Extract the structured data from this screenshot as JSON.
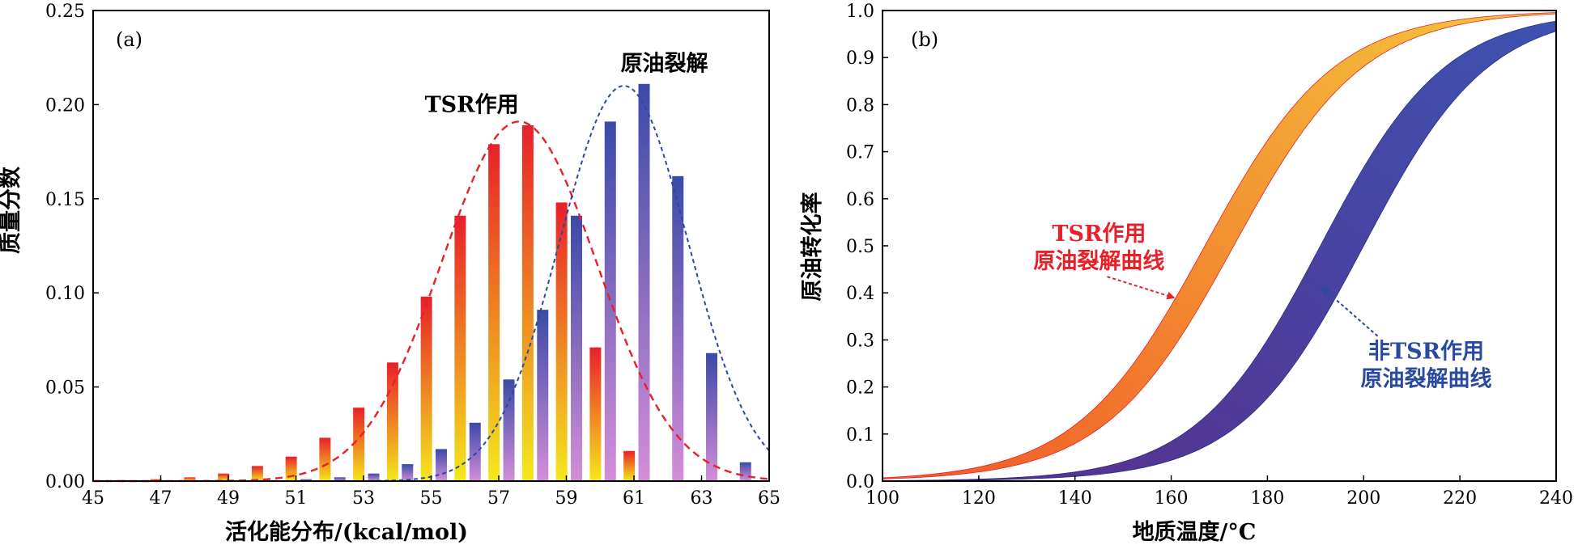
{
  "chart_data": [
    {
      "panel_label": "(a)",
      "type": "bar",
      "xlabel": "活化能分布/(kcal/mol)",
      "ylabel": "质量分数",
      "xlim": [
        45,
        65
      ],
      "ylim": [
        0,
        0.25
      ],
      "xticks": [
        45,
        47,
        49,
        51,
        53,
        55,
        57,
        59,
        61,
        63,
        65
      ],
      "yticks": [
        "0.00",
        "0.05",
        "0.10",
        "0.15",
        "0.20",
        "0.25"
      ],
      "series": [
        {
          "name": "TSR作用",
          "color_top": "#e8202a",
          "color_bottom": "#f4e81c",
          "x": [
            46,
            47,
            48,
            49,
            50,
            51,
            52,
            53,
            54,
            55,
            56,
            57,
            58,
            59,
            60,
            61
          ],
          "values": [
            0.0005,
            0.001,
            0.002,
            0.004,
            0.008,
            0.013,
            0.023,
            0.039,
            0.063,
            0.098,
            0.141,
            0.179,
            0.189,
            0.148,
            0.071,
            0.016
          ],
          "curve": {
            "mu": 57.6,
            "sigma": 2.3,
            "peak": 0.191,
            "color": "#e8202a"
          }
        },
        {
          "name": "原油裂解",
          "color_top": "#3a4aa8",
          "color_bottom": "#d48ed8",
          "x": [
            50,
            51,
            52,
            53,
            54,
            55,
            56,
            57,
            58,
            59,
            60,
            61,
            62,
            63,
            64
          ],
          "values": [
            0.0005,
            0.001,
            0.002,
            0.004,
            0.009,
            0.017,
            0.031,
            0.054,
            0.091,
            0.141,
            0.191,
            0.211,
            0.162,
            0.068,
            0.01
          ],
          "curve": {
            "mu": 60.7,
            "sigma": 1.9,
            "peak": 0.21,
            "color": "#2a4aa0"
          }
        }
      ],
      "annotations": [
        {
          "text": "TSR作用",
          "x": 56.2,
          "y": 0.196
        },
        {
          "text": "原油裂解",
          "x": 61.9,
          "y": 0.218
        }
      ]
    },
    {
      "panel_label": "(b)",
      "type": "area",
      "xlabel": "地质温度/°C",
      "ylabel": "原油转化率",
      "xlim": [
        100,
        240
      ],
      "ylim": [
        0,
        1.0
      ],
      "xticks": [
        100,
        120,
        140,
        160,
        180,
        200,
        220,
        240
      ],
      "yticks": [
        "0.0",
        "0.1",
        "0.2",
        "0.3",
        "0.4",
        "0.5",
        "0.6",
        "0.7",
        "0.8",
        "0.9",
        "1.0"
      ],
      "series": [
        {
          "name": "TSR作用原油裂解曲线",
          "band": {
            "lower_center": 173,
            "upper_center": 167,
            "scale": 13.5
          },
          "color_start": "#f05a28",
          "color_end": "#f4c63c",
          "edge_color": "#e8202a"
        },
        {
          "name": "非TSR作用原油裂解曲线",
          "band": {
            "lower_center": 200,
            "upper_center": 191,
            "scale": 13.0
          },
          "color_start": "#5a2e8c",
          "color_end": "#3d52b0",
          "edge_color": "#2a2e88"
        }
      ],
      "annotations": [
        {
          "lines": [
            "TSR作用",
            "原油裂解曲线"
          ],
          "color": "#e8202a",
          "text_x": 145,
          "text_y": 0.51,
          "arrow_to": [
            160.5,
            0.39
          ]
        },
        {
          "lines": [
            "非TSR作用",
            "原油裂解曲线"
          ],
          "color": "#2a4aa0",
          "text_x": 213,
          "text_y": 0.26,
          "arrow_to": [
            191.5,
            0.41
          ]
        }
      ]
    }
  ]
}
